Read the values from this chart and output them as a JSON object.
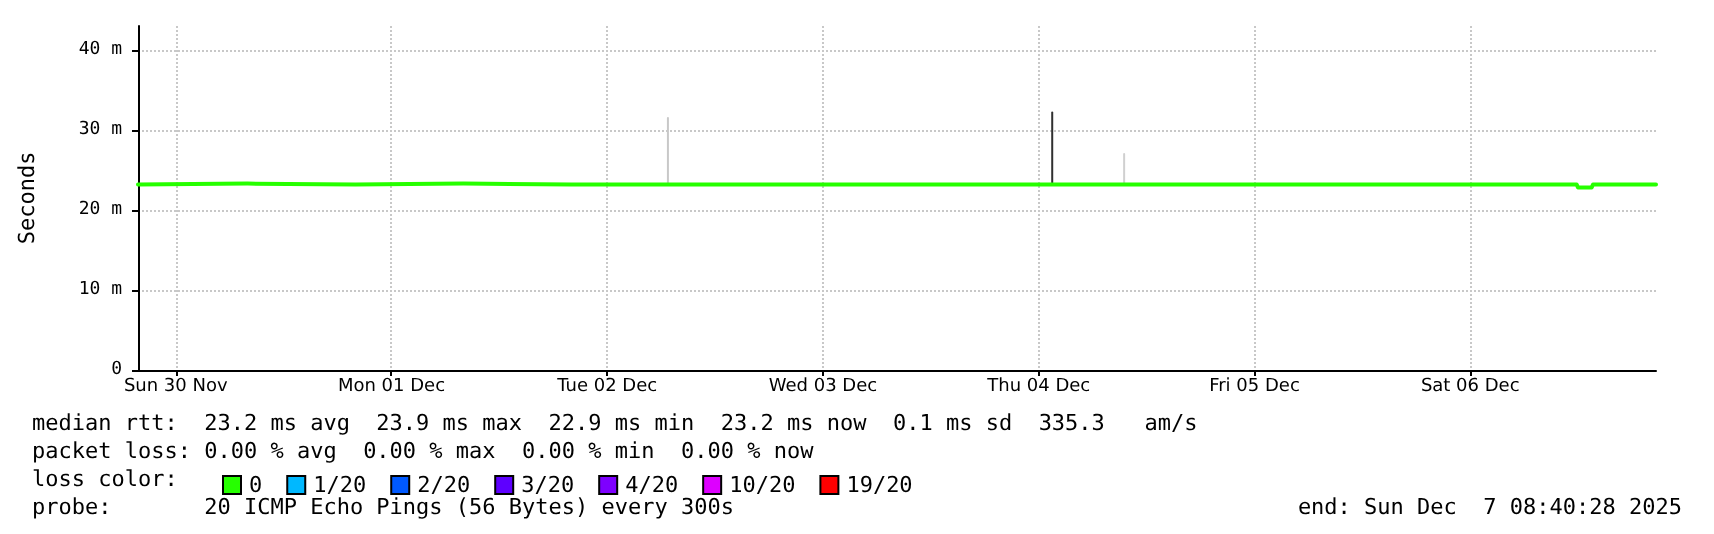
{
  "chart_data": {
    "type": "line",
    "ylabel": "Seconds",
    "legend_title": "loss color:",
    "legend": "bottom",
    "grid": true,
    "marker": "none",
    "line_style": "solid",
    "xlim": [
      "2025-11-30T07:48",
      "2025-12-07T08:40"
    ],
    "xticks": [
      {
        "value": "2025-11-30T12:00",
        "label": "Sun 30 Nov"
      },
      {
        "value": "2025-12-01T12:00",
        "label": "Mon 01 Dec"
      },
      {
        "value": "2025-12-02T12:00",
        "label": "Tue 02 Dec"
      },
      {
        "value": "2025-12-03T12:00",
        "label": "Wed 03 Dec"
      },
      {
        "value": "2025-12-04T12:00",
        "label": "Thu 04 Dec"
      },
      {
        "value": "2025-12-05T12:00",
        "label": "Fri 05 Dec"
      },
      {
        "value": "2025-12-06T12:00",
        "label": "Sat 06 Dec"
      }
    ],
    "ylim": [
      0,
      43
    ],
    "yticks": [
      0,
      {
        "value": 10,
        "label": "10 m"
      },
      {
        "value": 20,
        "label": "20 m"
      },
      {
        "value": 30,
        "label": "30 m"
      },
      {
        "value": 40,
        "label": "40 m"
      }
    ],
    "series": [
      {
        "name": "0",
        "color": "#26ff00",
        "x": [
          "2025-11-30T07:48",
          "2025-11-30T20:00",
          "2025-12-01T08:00",
          "2025-12-01T20:00",
          "2025-12-02T08:00",
          "2025-12-02T20:00",
          "2025-12-03T08:00",
          "2025-12-03T20:00",
          "2025-12-04T08:00",
          "2025-12-04T20:00",
          "2025-12-05T08:00",
          "2025-12-05T20:00",
          "2025-12-06T08:00",
          "2025-12-06T20:00",
          "2025-12-06T23:50",
          "2025-12-07T00:00",
          "2025-12-07T01:30",
          "2025-12-07T01:40",
          "2025-12-07T08:40"
        ],
        "values": [
          23.2,
          23.3,
          23.2,
          23.3,
          23.2,
          23.2,
          23.2,
          23.2,
          23.2,
          23.2,
          23.2,
          23.2,
          23.2,
          23.2,
          23.2,
          22.8,
          22.8,
          23.2,
          23.2
        ]
      },
      {
        "name": "1/20",
        "color": "#00b8ff"
      },
      {
        "name": "2/20",
        "color": "#0059ff"
      },
      {
        "name": "3/20",
        "color": "#5e00ff"
      },
      {
        "name": "4/20",
        "color": "#7e00ff"
      },
      {
        "name": "10/20",
        "color": "#dd00ff"
      },
      {
        "name": "19/20",
        "color": "#ff0000"
      },
      {
        "color": "#c8c8c8",
        "x": [
          "2025-12-02T18:45",
          "2025-12-02T18:45"
        ],
        "values": [
          23.2,
          31.5
        ]
      },
      {
        "color": "#303030",
        "x": [
          "2025-12-04T13:30",
          "2025-12-04T13:30"
        ],
        "values": [
          23.2,
          32.2
        ]
      },
      {
        "color": "#d0d0d0",
        "x": [
          "2025-12-04T21:30",
          "2025-12-04T21:30"
        ],
        "values": [
          23.2,
          27
        ]
      }
    ],
    "annotations": [
      "median rtt:  23.2 ms avg  23.9 ms max  22.9 ms min  23.2 ms now  0.1 ms sd  335.3   am/s",
      "packet loss: 0.00 % avg  0.00 % max  0.00 % min  0.00 % now",
      "probe:       20 ICMP Echo Pings (56 Bytes) every 300s",
      "end: Sun Dec  7 08:40:28 2025"
    ]
  }
}
